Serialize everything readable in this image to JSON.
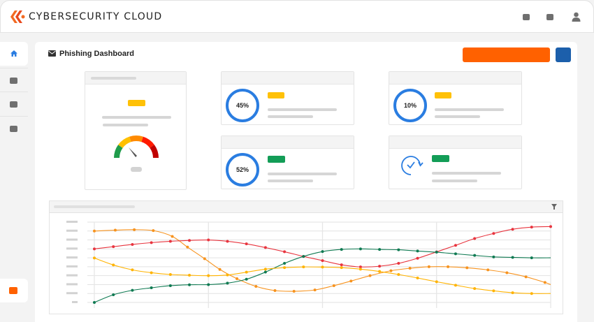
{
  "header": {
    "brand": "CYBERSECURITY CLOUD",
    "icons": [
      "square-icon",
      "square-icon",
      "user-icon"
    ]
  },
  "sidebar": {
    "items": [
      "home-icon",
      "square-icon",
      "square-icon",
      "square-icon"
    ],
    "bottom_item": "orange-square-icon"
  },
  "page": {
    "title": "Phishing Dashboard",
    "title_icon": "envelope-icon"
  },
  "colors": {
    "accent_orange": "#ff6100",
    "accent_blue": "#1c5fab",
    "ring_blue": "#2a7de1",
    "yellow": "#ffc107",
    "green": "#139d57"
  },
  "cards": {
    "gauge": {
      "pill_color": "#ffc107",
      "gauge_segments": [
        "#1f9c4b",
        "#ffc000",
        "#ff8a00",
        "#ff1a00",
        "#c00000"
      ]
    },
    "stat1": {
      "value": "45%",
      "pill_color": "#ffc107"
    },
    "stat2": {
      "value": "10%",
      "pill_color": "#ffc107"
    },
    "stat3": {
      "value": "52%",
      "pill_color": "#139d57"
    },
    "stat4": {
      "icon": "clock-check-icon",
      "pill_color": "#139d57"
    }
  },
  "chart_data": {
    "type": "line",
    "grid": true,
    "xlim": [
      0,
      24
    ],
    "ylim": [
      0,
      9
    ],
    "filter_icon": "filter-icon",
    "series": [
      {
        "color": "#f7931e",
        "x": [
          0,
          1.1,
          2.1,
          3.1,
          4.1,
          4.9,
          5.8,
          6.6,
          7.5,
          8.5,
          9.5,
          10.5,
          11.6,
          12.6,
          13.5,
          14.5,
          15.6,
          16.6,
          17.6,
          18.6,
          19.6,
          20.7,
          21.7,
          22.7,
          23.7,
          24
        ],
        "y": [
          8.0,
          8.1,
          8.15,
          8.05,
          7.4,
          6.2,
          4.9,
          3.7,
          2.66,
          1.8,
          1.33,
          1.25,
          1.4,
          1.88,
          2.4,
          3.0,
          3.55,
          3.83,
          4.0,
          4.0,
          3.88,
          3.65,
          3.33,
          2.87,
          2.24,
          2.0
        ]
      },
      {
        "color": "#e8343e",
        "x": [
          0,
          1,
          2,
          3,
          4,
          5,
          6,
          7,
          8,
          9,
          10,
          11,
          12,
          13,
          14,
          15,
          16,
          17,
          18,
          19,
          20,
          21,
          22,
          23,
          24
        ],
        "y": [
          6.0,
          6.25,
          6.5,
          6.7,
          6.85,
          6.95,
          7.0,
          6.85,
          6.56,
          6.15,
          5.68,
          5.16,
          4.69,
          4.22,
          3.98,
          4.06,
          4.38,
          4.95,
          5.66,
          6.4,
          7.16,
          7.73,
          8.2,
          8.44,
          8.5
        ]
      },
      {
        "color": "#0f7a52",
        "x": [
          0,
          1,
          2,
          3,
          4,
          5,
          6,
          7,
          8,
          9,
          10,
          11,
          12,
          13,
          14,
          15,
          16,
          17,
          18,
          19,
          20,
          21,
          22,
          23,
          24
        ],
        "y": [
          0.0,
          0.86,
          1.36,
          1.64,
          1.88,
          1.98,
          2.0,
          2.16,
          2.6,
          3.4,
          4.38,
          5.16,
          5.7,
          5.94,
          6.0,
          5.94,
          5.9,
          5.76,
          5.63,
          5.45,
          5.27,
          5.1,
          5.05,
          5.0,
          5.0
        ]
      },
      {
        "color": "#ffb300",
        "x": [
          0,
          1,
          2,
          3,
          4,
          5,
          6,
          7,
          8,
          9,
          10,
          11,
          12,
          13,
          14,
          15,
          16,
          17,
          18,
          19,
          20,
          21,
          22,
          23,
          24
        ],
        "y": [
          4.98,
          4.2,
          3.65,
          3.33,
          3.13,
          3.05,
          3.0,
          3.08,
          3.39,
          3.73,
          3.9,
          3.98,
          3.96,
          3.9,
          3.73,
          3.47,
          3.13,
          2.74,
          2.32,
          1.93,
          1.56,
          1.3,
          1.09,
          1.0,
          1.0
        ]
      }
    ]
  }
}
